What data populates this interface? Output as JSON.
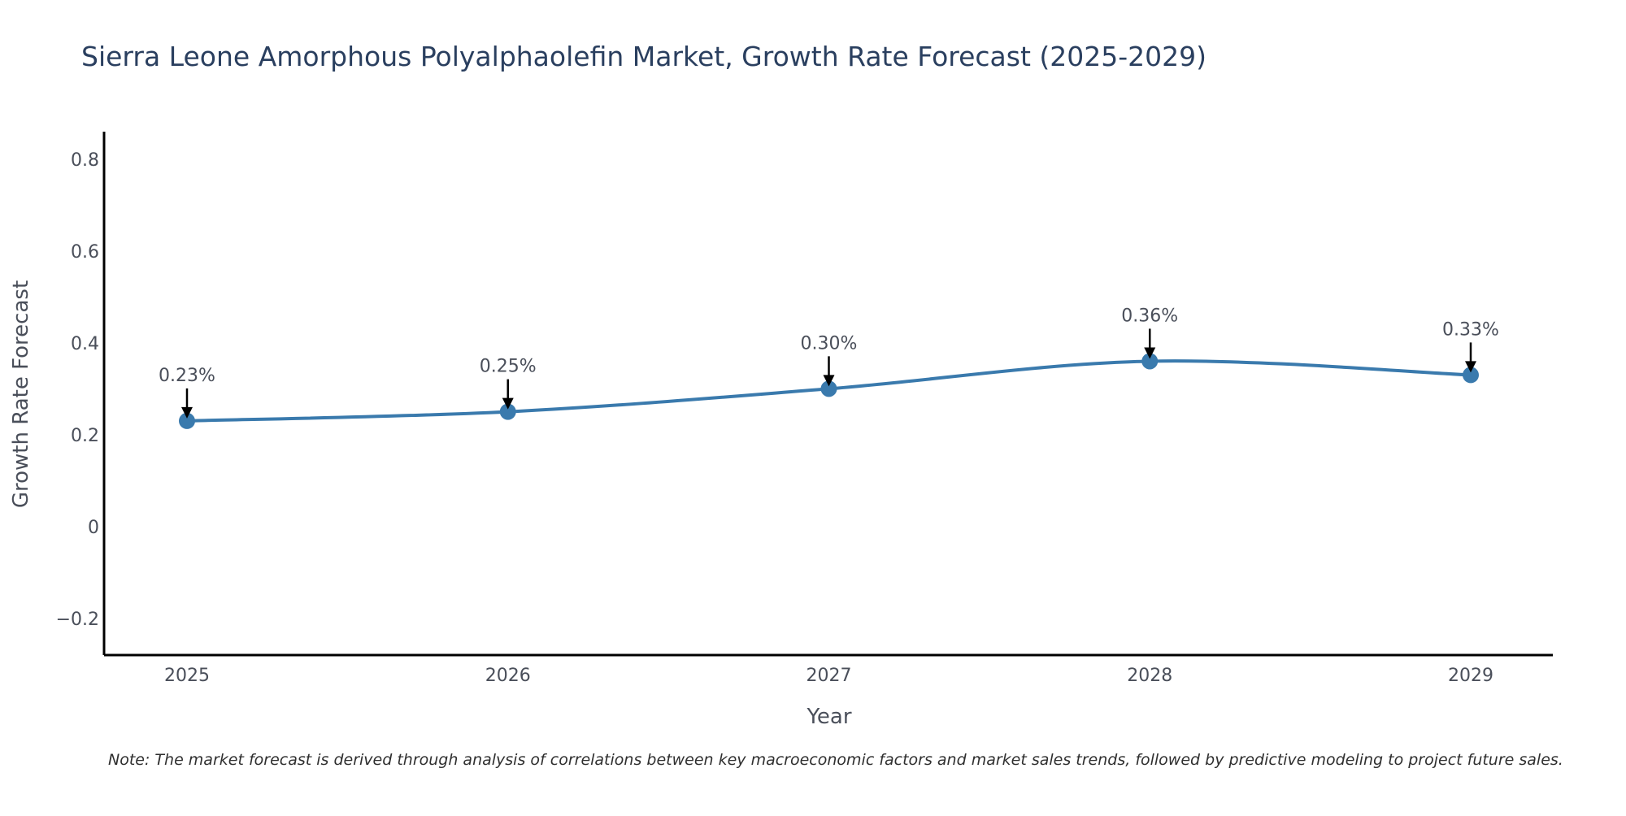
{
  "colors": {
    "series": "#3a7aad",
    "axis": "#000000",
    "arrow": "#000000"
  },
  "chart_data": {
    "type": "line",
    "title": "Sierra Leone Amorphous Polyalphaolefin Market, Growth Rate Forecast (2025-2029)",
    "xlabel": "Year",
    "ylabel": "Growth Rate Forecast",
    "categories": [
      "2025",
      "2026",
      "2027",
      "2028",
      "2029"
    ],
    "series": [
      {
        "name": "Growth Rate Forecast",
        "values": [
          0.23,
          0.25,
          0.3,
          0.36,
          0.33
        ]
      }
    ],
    "data_labels": [
      "0.23%",
      "0.25%",
      "0.30%",
      "0.36%",
      "0.33%"
    ],
    "yticks": [
      -0.2,
      0,
      0.2,
      0.4,
      0.6,
      0.8
    ],
    "ytick_labels": [
      "−0.2",
      "0",
      "0.2",
      "0.4",
      "0.6",
      "0.8"
    ],
    "ylim": [
      -0.28,
      0.86
    ],
    "grid": false,
    "legend": "none",
    "line_shape": "spline"
  },
  "note": "Note: The market forecast is derived through analysis of correlations between key macroeconomic factors and market sales trends, followed by predictive modeling to project future sales."
}
